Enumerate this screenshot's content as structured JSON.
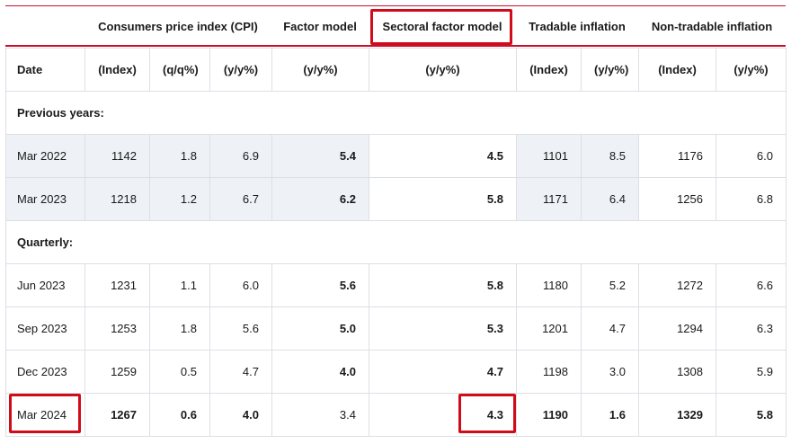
{
  "group_headers": [
    "Consumers price index (CPI)",
    "Factor model",
    "Sectoral factor model",
    "Tradable inflation",
    "Non-tradable inflation"
  ],
  "columns": [
    "Date",
    "(Index)",
    "(q/q%)",
    "(y/y%)",
    "(y/y%)",
    "(y/y%)",
    "(Index)",
    "(y/y%)",
    "(Index)",
    "(y/y%)"
  ],
  "sections": {
    "previous": "Previous years:",
    "quarterly": "Quarterly:"
  },
  "rows": [
    [
      "Mar 2022",
      "1142",
      "1.8",
      "6.9",
      "5.4",
      "4.5",
      "1101",
      "8.5",
      "1176",
      "6.0"
    ],
    [
      "Mar 2023",
      "1218",
      "1.2",
      "6.7",
      "6.2",
      "5.8",
      "1171",
      "6.4",
      "1256",
      "6.8"
    ],
    [
      "Jun 2023",
      "1231",
      "1.1",
      "6.0",
      "5.6",
      "5.8",
      "1180",
      "5.2",
      "1272",
      "6.6"
    ],
    [
      "Sep 2023",
      "1253",
      "1.8",
      "5.6",
      "5.0",
      "5.3",
      "1201",
      "4.7",
      "1294",
      "6.3"
    ],
    [
      "Dec 2023",
      "1259",
      "0.5",
      "4.7",
      "4.0",
      "4.7",
      "1198",
      "3.0",
      "1308",
      "5.9"
    ],
    [
      "Mar 2024",
      "1267",
      "0.6",
      "4.0",
      "3.4",
      "4.3",
      "1190",
      "1.6",
      "1329",
      "5.8"
    ]
  ],
  "highlight_color": "#d10c1a",
  "accent_color": "#c8102e"
}
